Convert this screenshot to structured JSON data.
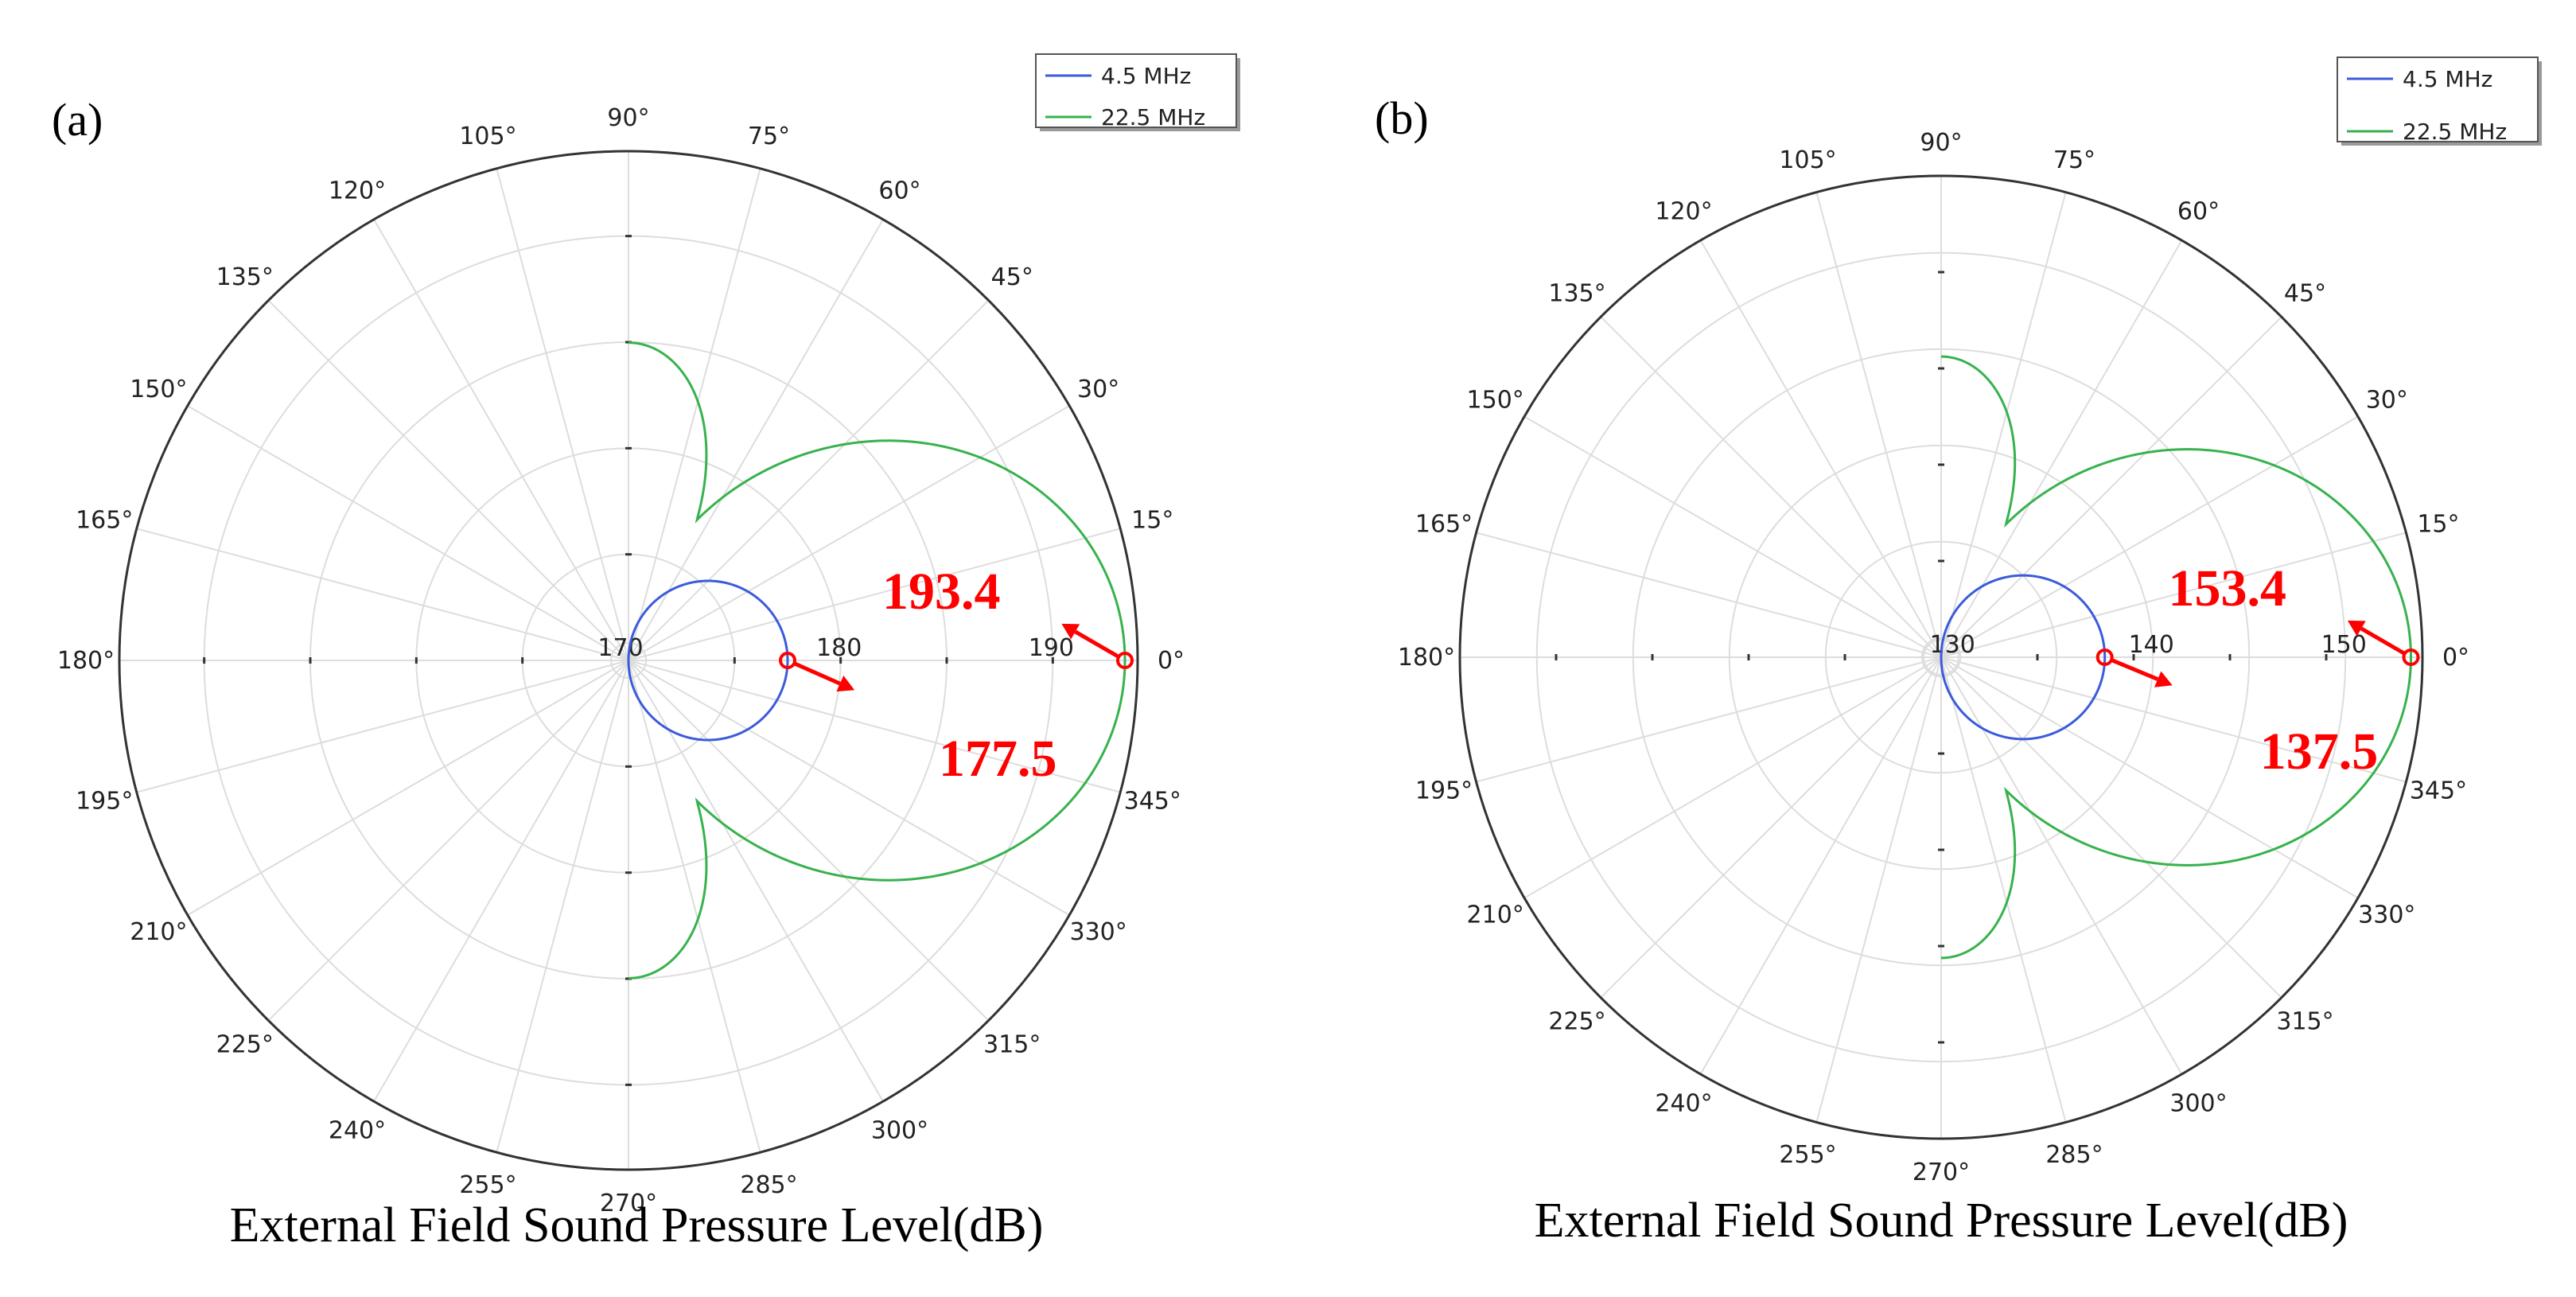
{
  "chart_data": [
    {
      "type": "polar-line",
      "panel_label": "(a)",
      "caption": "External Field Sound Pressure Level(dB)",
      "angle_ticks_deg": [
        0,
        15,
        30,
        45,
        60,
        75,
        90,
        105,
        120,
        135,
        150,
        165,
        180,
        195,
        210,
        225,
        240,
        255,
        270,
        285,
        300,
        315,
        330,
        345
      ],
      "radial_range": [
        170,
        194
      ],
      "radial_ticks": [
        170,
        180,
        190
      ],
      "series": [
        {
          "name": "4.5 MHz",
          "color": "#3b5bdb",
          "pattern": "cos",
          "peak_db": 177.5
        },
        {
          "name": "22.5 MHz",
          "color": "#37b24d",
          "pattern": "multi-lobe",
          "peak_db": 193.4
        }
      ],
      "annotations": [
        {
          "text": "177.5",
          "angle_deg": 0,
          "value": 177.5
        },
        {
          "text": "193.4",
          "angle_deg": 0,
          "value": 193.4
        }
      ]
    },
    {
      "type": "polar-line",
      "panel_label": "(b)",
      "caption": "External Field Sound Pressure Level(dB)",
      "angle_ticks_deg": [
        0,
        15,
        30,
        45,
        60,
        75,
        90,
        105,
        120,
        135,
        150,
        165,
        180,
        195,
        210,
        225,
        240,
        255,
        270,
        285,
        300,
        315,
        330,
        345
      ],
      "radial_range": [
        129,
        154
      ],
      "radial_ticks": [
        130,
        140,
        150
      ],
      "series": [
        {
          "name": "4.5 MHz",
          "color": "#3b5bdb",
          "pattern": "cos",
          "peak_db": 137.5
        },
        {
          "name": "22.5 MHz",
          "color": "#37b24d",
          "pattern": "multi-lobe",
          "peak_db": 153.4
        }
      ],
      "annotations": [
        {
          "text": "137.5",
          "angle_deg": 0,
          "value": 137.5
        },
        {
          "text": "153.4",
          "angle_deg": 0,
          "value": 153.4
        }
      ]
    }
  ]
}
